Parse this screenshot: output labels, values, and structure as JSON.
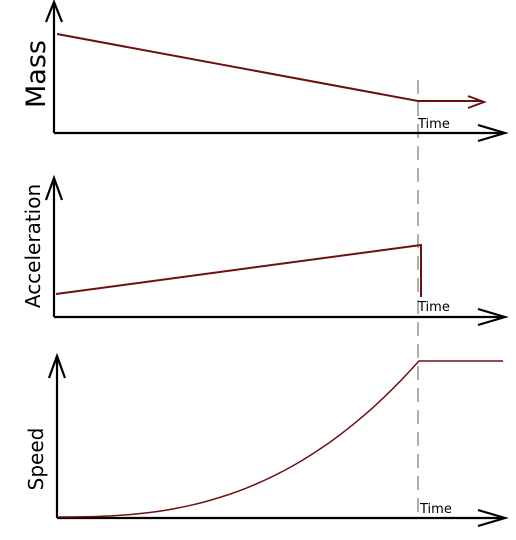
{
  "chart_data": [
    {
      "type": "line",
      "ylabel": "Mass",
      "xlabel": "Time",
      "description": "Mass decreases linearly until burnout, then stays constant",
      "series": [
        {
          "x": [
            0,
            1,
            1.18
          ],
          "values": [
            1.0,
            0.36,
            0.36
          ]
        }
      ]
    },
    {
      "type": "line",
      "ylabel": "Acceleration",
      "xlabel": "Time",
      "series": [
        {
          "x": [
            0,
            1,
            1
          ],
          "values": [
            0.45,
            1.0,
            0.0
          ]
        }
      ]
    },
    {
      "type": "line",
      "ylabel": "Speed",
      "xlabel": "Time",
      "series": [
        {
          "x": [
            0,
            0.2,
            0.4,
            0.6,
            0.8,
            1,
            1.22
          ],
          "values": [
            0,
            0.03,
            0.12,
            0.28,
            0.55,
            1.0,
            1.0
          ]
        }
      ]
    }
  ],
  "labels": {
    "mass": "Mass",
    "acceleration": "Acceleration",
    "speed": "Speed",
    "time": "Time"
  }
}
